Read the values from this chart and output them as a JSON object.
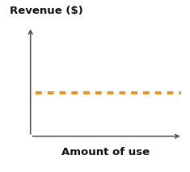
{
  "title": "",
  "ylabel": "Revenue ($)",
  "xlabel": "Amount of use",
  "line_y": 0.4,
  "line_color": "#E8922A",
  "line_width": 2.8,
  "xlim": [
    0,
    1
  ],
  "ylim": [
    0,
    1
  ],
  "background_color": "#ffffff",
  "ylabel_fontsize": 9.5,
  "xlabel_fontsize": 9.5,
  "ylabel_fontweight": "bold",
  "xlabel_fontweight": "bold",
  "axis_color": "#555555",
  "axis_lw": 1.2,
  "arrow_mutation_scale": 8
}
